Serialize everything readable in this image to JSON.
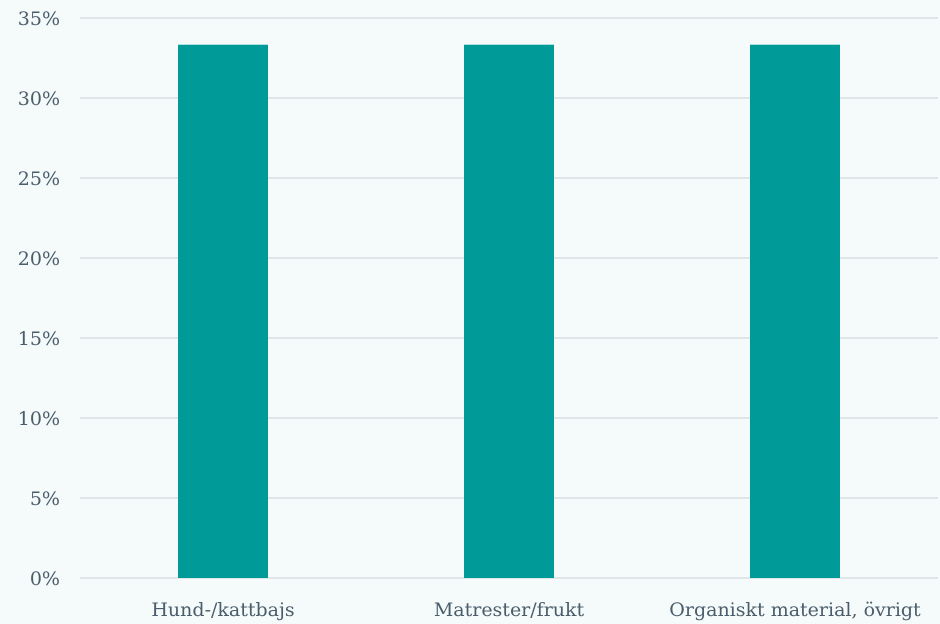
{
  "chart_data": {
    "type": "bar",
    "title": "",
    "xlabel": "",
    "ylabel": "",
    "categories": [
      "Hund-/kattbajs",
      "Matrester/frukt",
      "Organiskt material, övrigt"
    ],
    "series": [
      {
        "values": [
          33.33,
          33.33,
          33.33
        ]
      }
    ],
    "ylim": [
      0,
      35
    ],
    "yticks": [
      0,
      5,
      10,
      15,
      20,
      25,
      30,
      35
    ],
    "ytick_labels": [
      "0%",
      "5%",
      "10%",
      "15%",
      "20%",
      "25%",
      "30%",
      "35%"
    ],
    "grid": true,
    "legend": "none",
    "colors": {
      "bar": "#009b98",
      "grid": "#d7dfe3",
      "text": "#4a5d6b",
      "background": "#f5fafb"
    }
  }
}
